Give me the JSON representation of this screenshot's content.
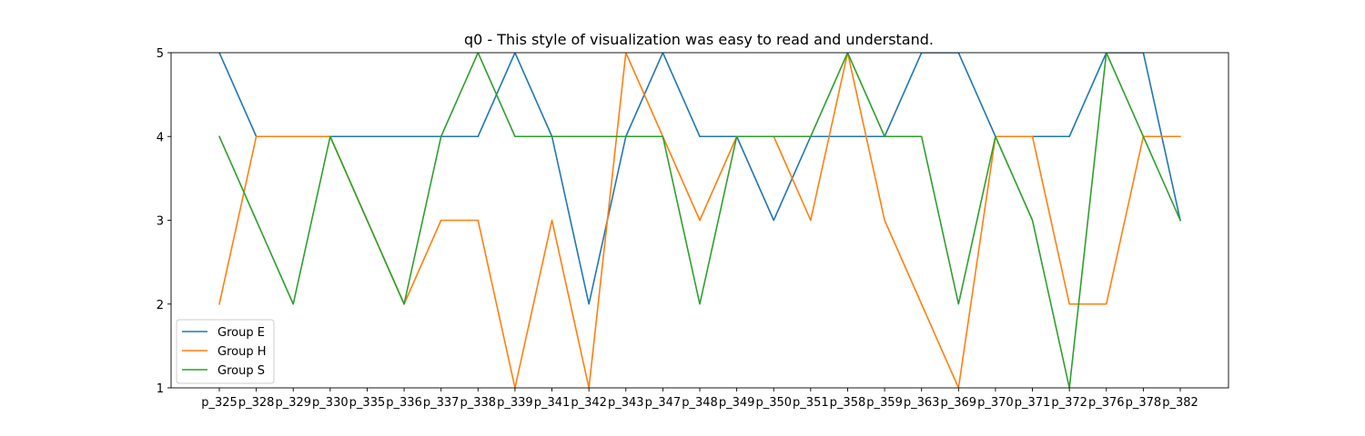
{
  "chart_data": {
    "type": "line",
    "title": "q0 - This style of visualization was easy to read and understand.",
    "xlabel": "",
    "ylabel": "",
    "ylim": [
      1,
      5
    ],
    "yticks": [
      "1",
      "2",
      "3",
      "4",
      "5"
    ],
    "grid": false,
    "legend_position": "lower-left",
    "categories": [
      "p_325",
      "p_328",
      "p_329",
      "p_330",
      "p_335",
      "p_336",
      "p_337",
      "p_338",
      "p_339",
      "p_341",
      "p_342",
      "p_343",
      "p_347",
      "p_348",
      "p_349",
      "p_350",
      "p_351",
      "p_358",
      "p_359",
      "p_363",
      "p_369",
      "p_370",
      "p_371",
      "p_372",
      "p_376",
      "p_378",
      "p_382"
    ],
    "series": [
      {
        "name": "Group E",
        "color": "#1f77b4",
        "values": [
          5,
          4,
          4,
          4,
          4,
          4,
          4,
          4,
          5,
          4,
          2,
          4,
          5,
          4,
          4,
          3,
          4,
          4,
          4,
          5,
          5,
          4,
          4,
          4,
          5,
          5,
          3
        ]
      },
      {
        "name": "Group H",
        "color": "#ff7f0e",
        "values": [
          2,
          4,
          4,
          4,
          3,
          2,
          3,
          3,
          1,
          3,
          1,
          5,
          4,
          3,
          4,
          4,
          3,
          5,
          3,
          2,
          1,
          4,
          4,
          2,
          2,
          4,
          4
        ]
      },
      {
        "name": "Group S",
        "color": "#2ca02c",
        "values": [
          4,
          3,
          2,
          4,
          3,
          2,
          4,
          5,
          4,
          4,
          4,
          4,
          4,
          2,
          4,
          4,
          4,
          5,
          4,
          4,
          2,
          4,
          3,
          1,
          5,
          4,
          3
        ]
      }
    ]
  }
}
